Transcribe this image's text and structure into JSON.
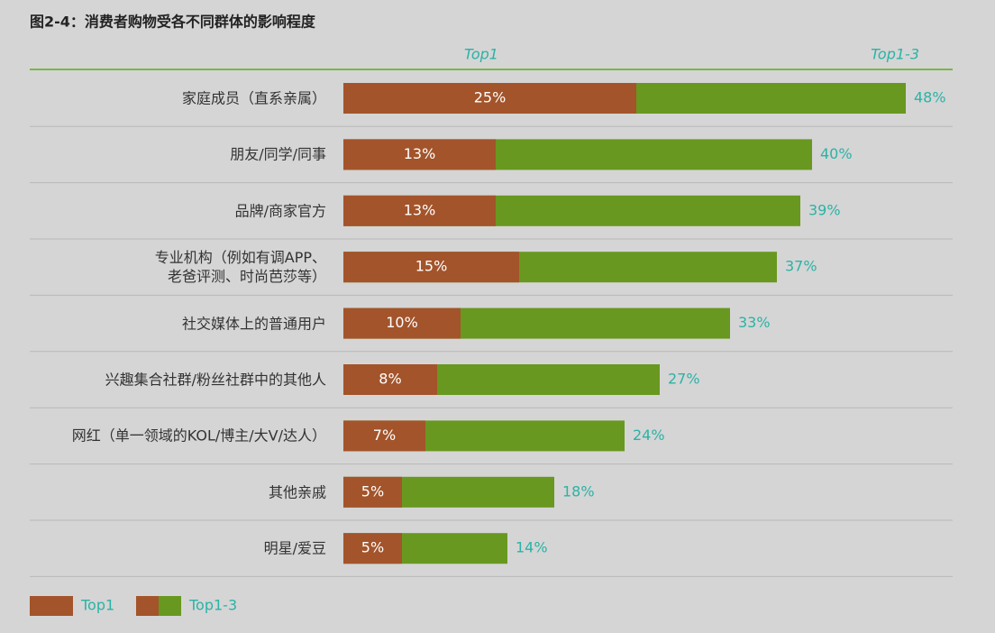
{
  "chart_data": {
    "type": "bar",
    "orientation": "horizontal",
    "title": "图2-4：消费者购物受各不同群体的影响程度",
    "categories": [
      "家庭成员（直系亲属）",
      "朋友/同学/同事",
      "品牌/商家官方",
      "专业机构（例如有调APP、\n老爸评测、时尚芭莎等）",
      "社交媒体上的普通用户",
      "兴趣集合社群/粉丝社群中的其他人",
      "网红（单一领域的KOL/博主/大V/达人）",
      "其他亲戚",
      "明星/爱豆"
    ],
    "series": [
      {
        "name": "Top1",
        "color": "#a3542b",
        "values": [
          25,
          13,
          13,
          15,
          10,
          8,
          7,
          5,
          5
        ],
        "value_labels": [
          "25%",
          "13%",
          "13%",
          "15%",
          "10%",
          "8%",
          "7%",
          "5%",
          "5%"
        ]
      },
      {
        "name": "Top1-3",
        "color": "#68981f",
        "values": [
          48,
          40,
          39,
          37,
          33,
          27,
          24,
          18,
          14
        ],
        "value_labels": [
          "48%",
          "40%",
          "39%",
          "37%",
          "33%",
          "27%",
          "24%",
          "18%",
          "14%"
        ]
      }
    ]
  }
}
